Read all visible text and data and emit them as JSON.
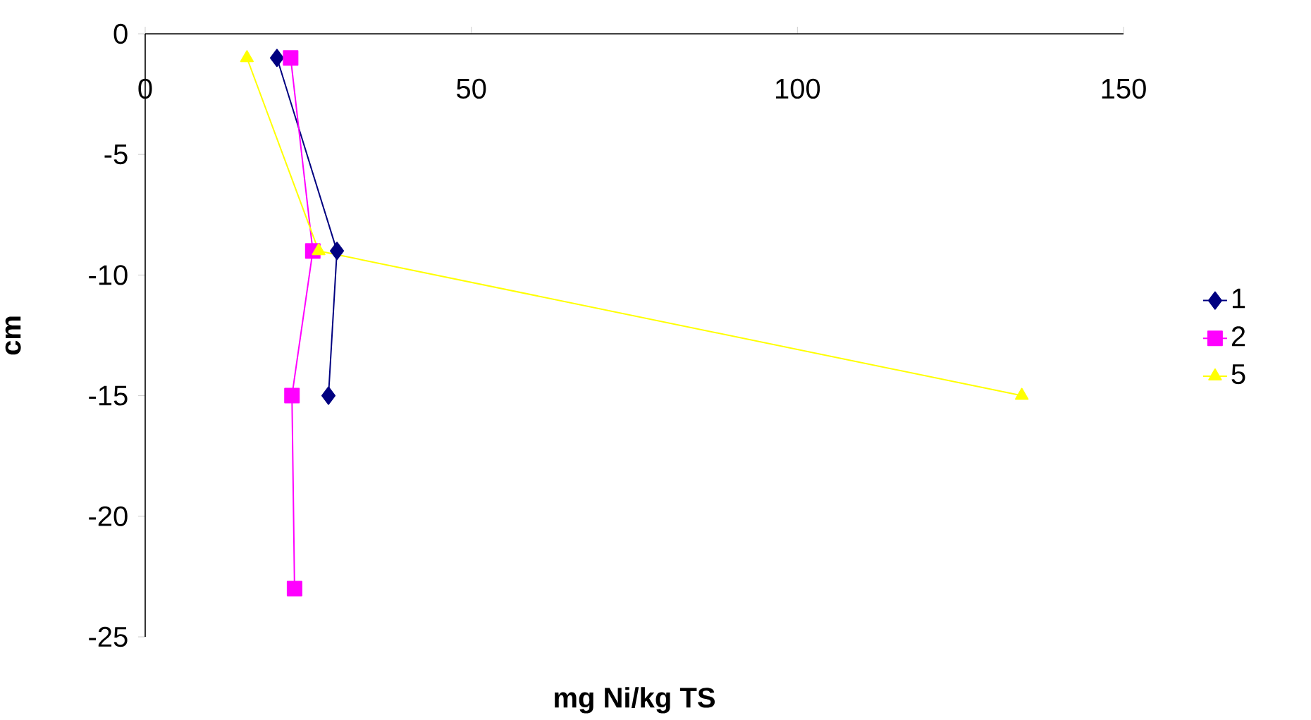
{
  "chart_data": {
    "type": "line",
    "xlabel": "mg Ni/kg TS",
    "ylabel": "cm",
    "xlim": [
      0,
      150
    ],
    "ylim": [
      -25,
      0
    ],
    "xticks": [
      0,
      50,
      100,
      150
    ],
    "yticks": [
      -25,
      -20,
      -15,
      -10,
      -5,
      0
    ],
    "grid": false,
    "legend": "right",
    "series": [
      {
        "name": "1",
        "color": "#000080",
        "marker": "diamond",
        "x": [
          20.2,
          29.4,
          28.1
        ],
        "values": [
          -1,
          -9,
          -15
        ]
      },
      {
        "name": "2",
        "color": "#ff00ff",
        "marker": "square",
        "x": [
          22.3,
          25.7,
          22.5,
          22.9
        ],
        "values": [
          -1,
          -9,
          -15,
          -23
        ]
      },
      {
        "name": "5",
        "color": "#ffff00",
        "marker": "triangle",
        "x": [
          15.6,
          26.6,
          134.4
        ],
        "values": [
          -1,
          -9,
          -15
        ]
      }
    ]
  }
}
